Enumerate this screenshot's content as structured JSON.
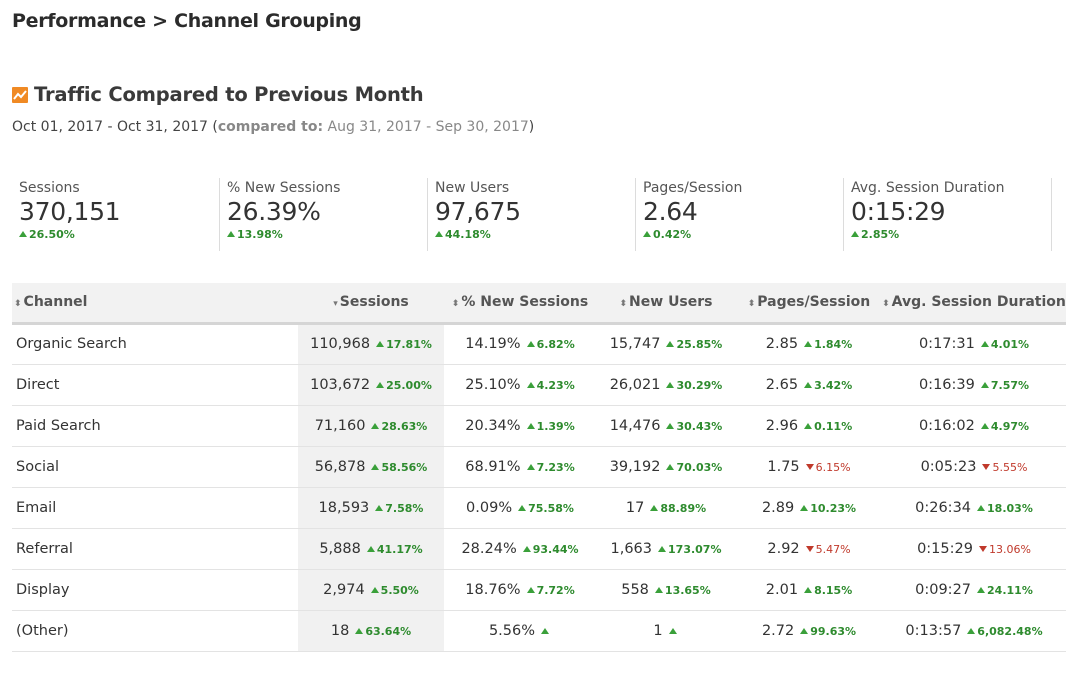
{
  "breadcrumb": "Performance > Channel Grouping",
  "report": {
    "title": "Traffic Compared to Previous Month",
    "date_range": "Oct 01, 2017 - Oct 31, 2017",
    "compared_label": "compared to:",
    "compared_range": "Aug 31, 2017 - Sep 30, 2017"
  },
  "kpis": [
    {
      "label": "Sessions",
      "value": "370,151",
      "delta": "26.50%",
      "direction": "up"
    },
    {
      "label": "% New Sessions",
      "value": "26.39%",
      "delta": "13.98%",
      "direction": "up"
    },
    {
      "label": "New Users",
      "value": "97,675",
      "delta": "44.18%",
      "direction": "up"
    },
    {
      "label": "Pages/Session",
      "value": "2.64",
      "delta": "0.42%",
      "direction": "up"
    },
    {
      "label": "Avg. Session Duration",
      "value": "0:15:29",
      "delta": "2.85%",
      "direction": "up"
    }
  ],
  "table": {
    "headers": [
      "Channel",
      "Sessions",
      "% New Sessions",
      "New Users",
      "Pages/Session",
      "Avg. Session Duration"
    ],
    "sort_icons": [
      "⬍",
      "▾",
      "⬍",
      "⬍",
      "⬍",
      "⬍"
    ],
    "rows": [
      {
        "channel": "Organic Search",
        "cells": [
          [
            "110,968",
            "17.81%",
            "up"
          ],
          [
            "14.19%",
            "6.82%",
            "up"
          ],
          [
            "15,747",
            "25.85%",
            "up"
          ],
          [
            "2.85",
            "1.84%",
            "up"
          ],
          [
            "0:17:31",
            "4.01%",
            "up"
          ]
        ]
      },
      {
        "channel": "Direct",
        "cells": [
          [
            "103,672",
            "25.00%",
            "up"
          ],
          [
            "25.10%",
            "4.23%",
            "up"
          ],
          [
            "26,021",
            "30.29%",
            "up"
          ],
          [
            "2.65",
            "3.42%",
            "up"
          ],
          [
            "0:16:39",
            "7.57%",
            "up"
          ]
        ]
      },
      {
        "channel": "Paid Search",
        "cells": [
          [
            "71,160",
            "28.63%",
            "up"
          ],
          [
            "20.34%",
            "1.39%",
            "up"
          ],
          [
            "14,476",
            "30.43%",
            "up"
          ],
          [
            "2.96",
            "0.11%",
            "up"
          ],
          [
            "0:16:02",
            "4.97%",
            "up"
          ]
        ]
      },
      {
        "channel": "Social",
        "cells": [
          [
            "56,878",
            "58.56%",
            "up"
          ],
          [
            "68.91%",
            "7.23%",
            "up"
          ],
          [
            "39,192",
            "70.03%",
            "up"
          ],
          [
            "1.75",
            "6.15%",
            "down"
          ],
          [
            "0:05:23",
            "5.55%",
            "down"
          ]
        ]
      },
      {
        "channel": "Email",
        "cells": [
          [
            "18,593",
            "7.58%",
            "up"
          ],
          [
            "0.09%",
            "75.58%",
            "up"
          ],
          [
            "17",
            "88.89%",
            "up"
          ],
          [
            "2.89",
            "10.23%",
            "up"
          ],
          [
            "0:26:34",
            "18.03%",
            "up"
          ]
        ]
      },
      {
        "channel": "Referral",
        "cells": [
          [
            "5,888",
            "41.17%",
            "up"
          ],
          [
            "28.24%",
            "93.44%",
            "up"
          ],
          [
            "1,663",
            "173.07%",
            "up"
          ],
          [
            "2.92",
            "5.47%",
            "down"
          ],
          [
            "0:15:29",
            "13.06%",
            "down"
          ]
        ]
      },
      {
        "channel": "Display",
        "cells": [
          [
            "2,974",
            "5.50%",
            "up"
          ],
          [
            "18.76%",
            "7.72%",
            "up"
          ],
          [
            "558",
            "13.65%",
            "up"
          ],
          [
            "2.01",
            "8.15%",
            "up"
          ],
          [
            "0:09:27",
            "24.11%",
            "up"
          ]
        ]
      },
      {
        "channel": "(Other)",
        "cells": [
          [
            "18",
            "63.64%",
            "up"
          ],
          [
            "5.56%",
            "",
            "up"
          ],
          [
            "1",
            "",
            "up"
          ],
          [
            "2.72",
            "99.63%",
            "up"
          ],
          [
            "0:13:57",
            "6,082.48%",
            "up"
          ]
        ]
      }
    ]
  },
  "colors": {
    "up": "#2e8b2e",
    "down": "#c0392b",
    "accent_icon": "#f08a24"
  },
  "icons": {
    "report_icon": "chart-trend-icon"
  }
}
